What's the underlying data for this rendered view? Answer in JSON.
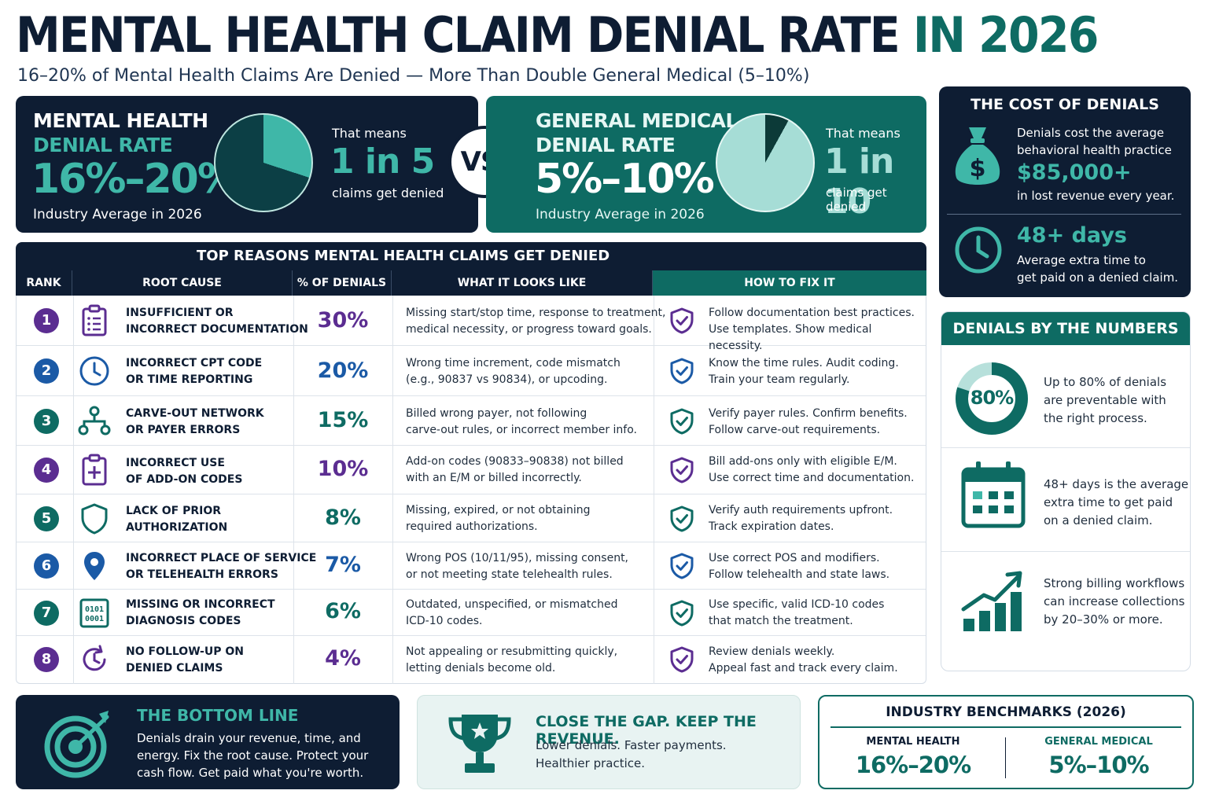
{
  "header": {
    "title_main": "MENTAL HEALTH CLAIM DENIAL RATE",
    "title_accent": "IN 2026",
    "subtitle": "16–20% of Mental Health Claims Are Denied — More Than Double General Medical (5–10%)"
  },
  "mental_health": {
    "title_line1": "MENTAL HEALTH",
    "title_line2": "DENIAL RATE",
    "rate": "16%–20%",
    "note": "Industry Average in 2026",
    "means_prefix": "That means",
    "means_value": "1 in 5",
    "means_suffix": "claims get denied",
    "pie_share": 0.2
  },
  "vs_label": "VS.",
  "general_medical": {
    "title_line1": "GENERAL MEDICAL",
    "title_line2": "DENIAL RATE",
    "rate": "5%–10%",
    "note": "Industry Average in 2026",
    "means_prefix": "That means",
    "means_value": "1 in 10",
    "means_suffix": "claims get denied",
    "pie_share": 0.1
  },
  "cost": {
    "title": "THE COST OF DENIALS",
    "money_text_1": "Denials cost the average",
    "money_text_2": "behavioral health practice",
    "money_value": "$85,000+",
    "money_text_3": "in lost revenue every year.",
    "days_value": "48+ days",
    "days_text_1": "Average extra time to",
    "days_text_2": "get paid on a denied claim."
  },
  "table": {
    "title": "TOP REASONS MENTAL HEALTH CLAIMS GET DENIED",
    "columns": [
      "RANK",
      "ROOT CAUSE",
      "% OF DENIALS",
      "WHAT IT LOOKS LIKE",
      "HOW TO FIX IT"
    ],
    "rows": [
      {
        "rank": "1",
        "cause1": "INSUFFICIENT OR",
        "cause2": "INCORRECT DOCUMENTATION",
        "pct": "30%",
        "looks1": "Missing start/stop time, response to treatment,",
        "looks2": "medical necessity, or progress toward goals.",
        "fix1": "Follow documentation best practices.",
        "fix2": "Use templates. Show medical necessity."
      },
      {
        "rank": "2",
        "cause1": "INCORRECT CPT CODE",
        "cause2": "OR TIME REPORTING",
        "pct": "20%",
        "looks1": "Wrong time increment, code mismatch",
        "looks2": "(e.g., 90837 vs 90834), or upcoding.",
        "fix1": "Know the time rules. Audit coding.",
        "fix2": "Train your team regularly."
      },
      {
        "rank": "3",
        "cause1": "CARVE-OUT NETWORK",
        "cause2": "OR PAYER ERRORS",
        "pct": "15%",
        "looks1": "Billed wrong payer, not following",
        "looks2": "carve-out rules, or incorrect member info.",
        "fix1": "Verify payer rules. Confirm benefits.",
        "fix2": "Follow carve-out requirements."
      },
      {
        "rank": "4",
        "cause1": "INCORRECT USE",
        "cause2": "OF ADD-ON CODES",
        "pct": "10%",
        "looks1": "Add-on codes (90833–90838) not billed",
        "looks2": "with an E/M or billed incorrectly.",
        "fix1": "Bill add-ons only with eligible E/M.",
        "fix2": "Use correct time and documentation."
      },
      {
        "rank": "5",
        "cause1": "LACK OF PRIOR",
        "cause2": "AUTHORIZATION",
        "pct": "8%",
        "looks1": "Missing, expired, or not obtaining",
        "looks2": "required authorizations.",
        "fix1": "Verify auth requirements upfront.",
        "fix2": "Track expiration dates."
      },
      {
        "rank": "6",
        "cause1": "INCORRECT PLACE OF SERVICE",
        "cause2": "OR TELEHEALTH ERRORS",
        "pct": "7%",
        "looks1": "Wrong POS (10/11/95), missing consent,",
        "looks2": "or not meeting state telehealth rules.",
        "fix1": "Use correct POS and modifiers.",
        "fix2": "Follow telehealth and state laws."
      },
      {
        "rank": "7",
        "cause1": "MISSING OR INCORRECT",
        "cause2": "DIAGNOSIS CODES",
        "pct": "6%",
        "looks1": "Outdated, unspecified, or mismatched",
        "looks2": "ICD-10 codes.",
        "fix1": "Use specific, valid ICD-10 codes",
        "fix2": "that match the treatment."
      },
      {
        "rank": "8",
        "cause1": "NO FOLLOW-UP ON",
        "cause2": "DENIED CLAIMS",
        "pct": "4%",
        "looks1": "Not appealing or resubmitting quickly,",
        "looks2": "letting denials become old.",
        "fix1": "Review denials weekly.",
        "fix2": "Appeal fast and track every claim."
      }
    ]
  },
  "numbers": {
    "title": "DENIALS BY THE NUMBERS",
    "donut_label": "80%",
    "donut_share": 0.8,
    "item1_1": "Up to 80% of denials",
    "item1_2": "are preventable with",
    "item1_3": "the right process.",
    "item2_1": "48+ days is the average",
    "item2_2": "extra time to get paid",
    "item2_3": "on a denied claim.",
    "item3_1": "Strong billing workflows",
    "item3_2": "can increase collections",
    "item3_3": "by 20–30% or more."
  },
  "bottom_line": {
    "title": "THE BOTTOM LINE",
    "text": "Denials drain your revenue, time, and energy. Fix the root cause. Protect your cash flow. Get paid what you're worth."
  },
  "close_gap": {
    "title": "CLOSE THE GAP. KEEP THE REVENUE.",
    "line1": "Lower denials. Faster payments.",
    "line2": "Healthier practice."
  },
  "benchmarks": {
    "title": "INDUSTRY BENCHMARKS (2026)",
    "mh_label": "MENTAL HEALTH",
    "mh_value": "16%–20%",
    "gm_label": "GENERAL MEDICAL",
    "gm_value": "5%–10%"
  },
  "colors": {
    "navy": "#0e1d33",
    "teal": "#0e6b63",
    "teal_light": "#3fb7a8",
    "purple": "#5b2d91",
    "blue": "#1b5aa6",
    "green": "#0e6b63"
  }
}
